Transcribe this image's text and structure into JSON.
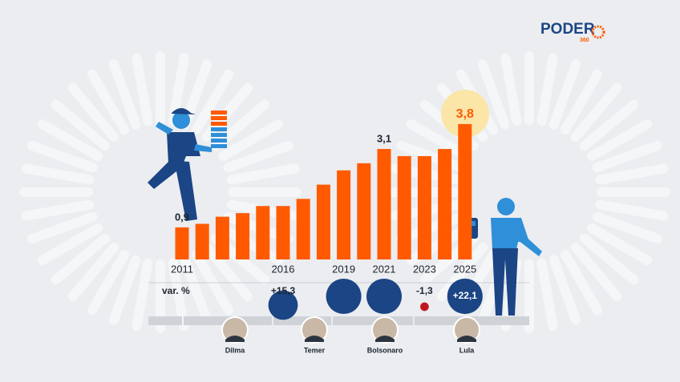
{
  "logo": {
    "name": "PODER",
    "sub": "360"
  },
  "chart_data": {
    "type": "bar",
    "categories": [
      "2011",
      null,
      null,
      null,
      null,
      "2016",
      null,
      null,
      "2019",
      null,
      "2021",
      null,
      "2023",
      null,
      "2025"
    ],
    "values": [
      0.9,
      1.0,
      1.2,
      1.3,
      1.5,
      1.5,
      1.7,
      2.1,
      2.5,
      2.7,
      3.1,
      2.9,
      2.9,
      3.1,
      3.8
    ],
    "value_labels": [
      "0,9",
      null,
      null,
      null,
      null,
      null,
      null,
      null,
      null,
      null,
      "3,1",
      null,
      null,
      null,
      "3,8"
    ],
    "color": "#ff5a00",
    "ylim": [
      0,
      4
    ],
    "variation": {
      "label": "var. %",
      "values": [
        null,
        null,
        null,
        null,
        null,
        15.3,
        null,
        null,
        22,
        null,
        22,
        null,
        -1.3,
        null,
        22.1
      ],
      "value_labels": [
        null,
        null,
        null,
        null,
        null,
        "+15,3",
        null,
        null,
        null,
        null,
        null,
        null,
        "-1,3",
        null,
        "+22,1"
      ],
      "color": "#1b4585",
      "negative_color": "#c0171e"
    }
  },
  "presidents": [
    "Dilma",
    "Temer",
    "Bolsonaro",
    "Lula"
  ]
}
